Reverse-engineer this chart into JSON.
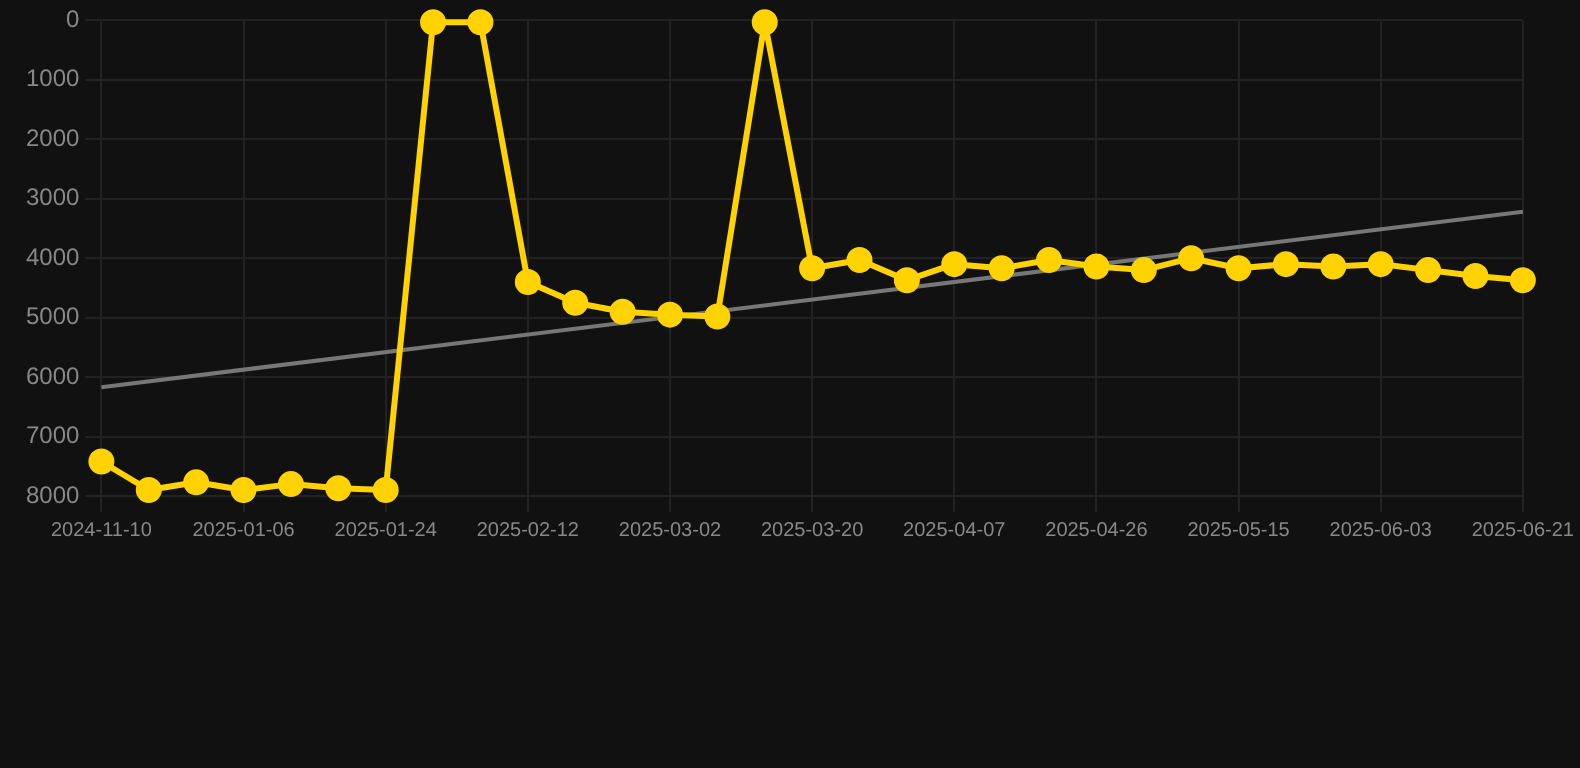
{
  "chart_data": {
    "type": "line",
    "categories": [
      "2024-11-10",
      null,
      null,
      "2025-01-06",
      null,
      null,
      "2025-01-24",
      null,
      null,
      "2025-02-12",
      null,
      null,
      "2025-03-02",
      null,
      null,
      "2025-03-20",
      null,
      null,
      "2025-04-07",
      null,
      null,
      "2025-04-26",
      null,
      null,
      "2025-05-15",
      null,
      null,
      "2025-06-03",
      null,
      null,
      "2025-06-21"
    ],
    "series": [
      {
        "color": "#ffd200",
        "marker": "circle",
        "values": [
          7420,
          7900,
          7770,
          7900,
          7800,
          7870,
          7900,
          30,
          30,
          4400,
          4750,
          4900,
          4950,
          4980,
          30,
          4170,
          4030,
          4370,
          4100,
          4170,
          4030,
          4140,
          4200,
          4000,
          4170,
          4100,
          4140,
          4100,
          4200,
          4300,
          4370
        ]
      },
      {
        "type": "line",
        "color": "#777777",
        "marker": "none",
        "values": [
          6170,
          null,
          null,
          null,
          null,
          null,
          null,
          null,
          null,
          null,
          null,
          null,
          null,
          null,
          null,
          null,
          null,
          null,
          null,
          null,
          null,
          null,
          null,
          null,
          null,
          null,
          null,
          null,
          null,
          null,
          3220
        ]
      }
    ],
    "ylim": [
      8000,
      0
    ],
    "yticks": [
      0,
      1000,
      2000,
      3000,
      4000,
      5000,
      6000,
      7000,
      8000
    ],
    "grid": true,
    "legend": false
  }
}
